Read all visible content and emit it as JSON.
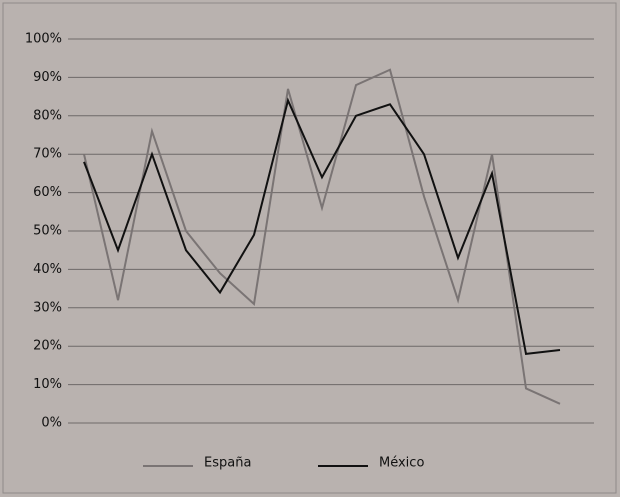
{
  "chart_data": {
    "type": "line",
    "categories": [
      null,
      null,
      null,
      null,
      null,
      null,
      null,
      null,
      null,
      null,
      null,
      null,
      null,
      null,
      null
    ],
    "series": [
      {
        "name": "España",
        "color": "#7a7474",
        "values": [
          70,
          32,
          76,
          50,
          39,
          31,
          87,
          56,
          88,
          92,
          59,
          32,
          70,
          9,
          5
        ]
      },
      {
        "name": "México",
        "color": "#111111",
        "values": [
          68,
          45,
          70,
          45,
          34,
          49,
          84,
          64,
          80,
          83,
          70,
          43,
          65,
          18,
          19
        ]
      }
    ],
    "ylim": [
      0,
      100
    ],
    "yticks": [
      {
        "value": 0,
        "label": "0%"
      },
      {
        "value": 10,
        "label": "10%"
      },
      {
        "value": 20,
        "label": "20%"
      },
      {
        "value": 30,
        "label": "30%"
      },
      {
        "value": 40,
        "label": "40%"
      },
      {
        "value": 50,
        "label": "50%"
      },
      {
        "value": 60,
        "label": "60%"
      },
      {
        "value": 70,
        "label": "70%"
      },
      {
        "value": 80,
        "label": "80%"
      },
      {
        "value": 90,
        "label": "90%"
      },
      {
        "value": 100,
        "label": "100%"
      }
    ],
    "grid": true,
    "legend": "bottom"
  }
}
